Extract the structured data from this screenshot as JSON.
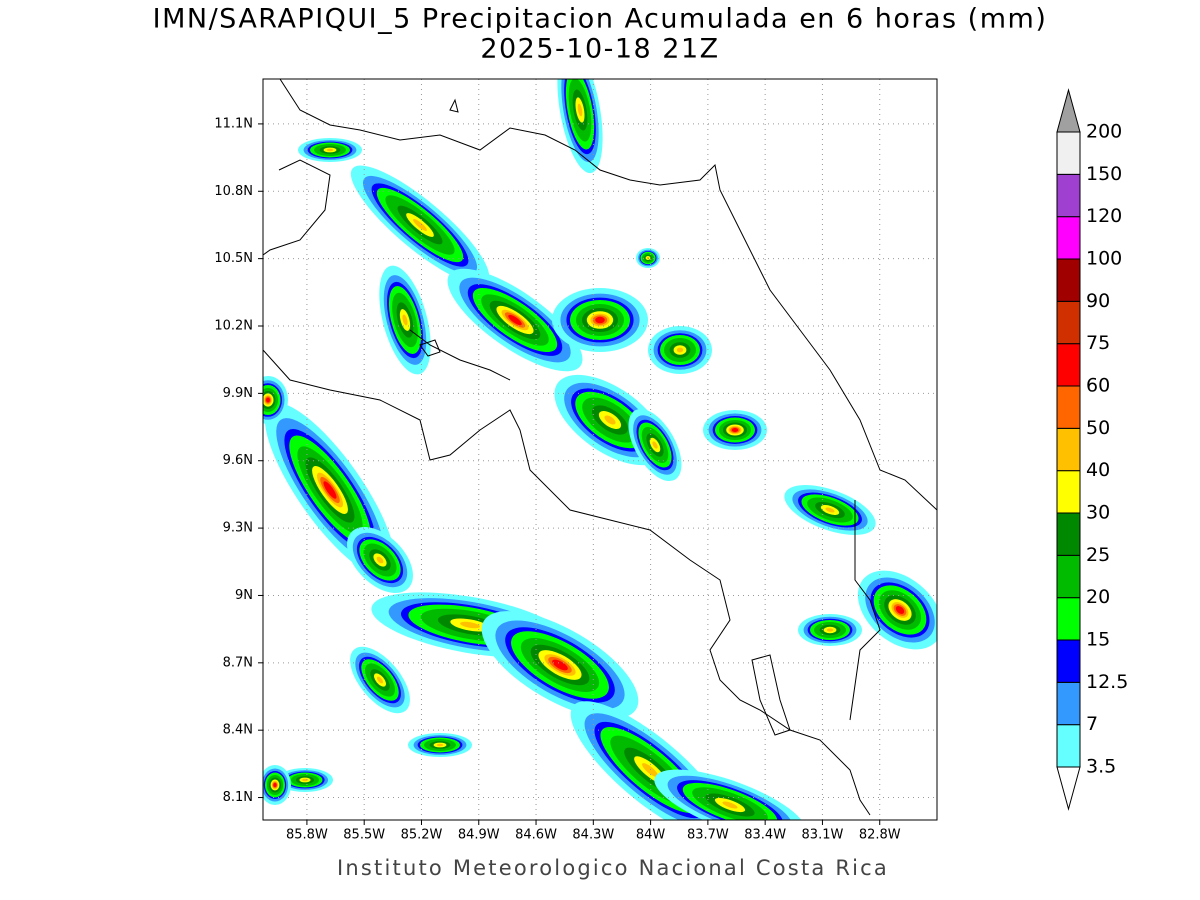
{
  "header": {
    "title": "IMN/SARAPIQUI_5 Precipitacion Acumulada en 6 horas (mm)",
    "subtitle": "2025-10-18 21Z"
  },
  "map": {
    "lon_range": [
      -86.03,
      -82.5
    ],
    "lat_range": [
      8.0,
      11.3
    ],
    "grid": true,
    "lat_ticks": [
      {
        "value": 11.1,
        "label": "11.1N"
      },
      {
        "value": 10.8,
        "label": "10.8N"
      },
      {
        "value": 10.5,
        "label": "10.5N"
      },
      {
        "value": 10.2,
        "label": "10.2N"
      },
      {
        "value": 9.9,
        "label": "9.9N"
      },
      {
        "value": 9.6,
        "label": "9.6N"
      },
      {
        "value": 9.3,
        "label": "9.3N"
      },
      {
        "value": 9,
        "label": "9N"
      },
      {
        "value": 8.7,
        "label": "8.7N"
      },
      {
        "value": 8.4,
        "label": "8.4N"
      },
      {
        "value": 8.1,
        "label": "8.1N"
      }
    ],
    "lon_ticks": [
      {
        "value": -85.8,
        "label": "85.8W"
      },
      {
        "value": -85.5,
        "label": "85.5W"
      },
      {
        "value": -85.2,
        "label": "85.2W"
      },
      {
        "value": -84.9,
        "label": "84.9W"
      },
      {
        "value": -84.6,
        "label": "84.6W"
      },
      {
        "value": -84.3,
        "label": "84.3W"
      },
      {
        "value": -84,
        "label": "84W"
      },
      {
        "value": -83.7,
        "label": "83.7W"
      },
      {
        "value": -83.4,
        "label": "83.4W"
      },
      {
        "value": -83.1,
        "label": "83.1W"
      },
      {
        "value": -82.8,
        "label": "82.8W"
      }
    ]
  },
  "colorbar": {
    "levels": [
      3.5,
      7,
      12.5,
      15,
      20,
      25,
      30,
      40,
      50,
      60,
      75,
      90,
      100,
      120,
      150,
      200
    ],
    "colors": [
      "#66ffff",
      "#3399ff",
      "#0000ff",
      "#00ff00",
      "#00bb00",
      "#008800",
      "#ffff00",
      "#ffc000",
      "#ff6600",
      "#ff0000",
      "#d03000",
      "#a00000",
      "#ff00ff",
      "#a040d0",
      "#f0f0f0"
    ],
    "under_color": "#ffffff",
    "over_color": "#a0a0a0"
  },
  "footer": "Instituto Meteorologico Nacional Costa Rica"
}
